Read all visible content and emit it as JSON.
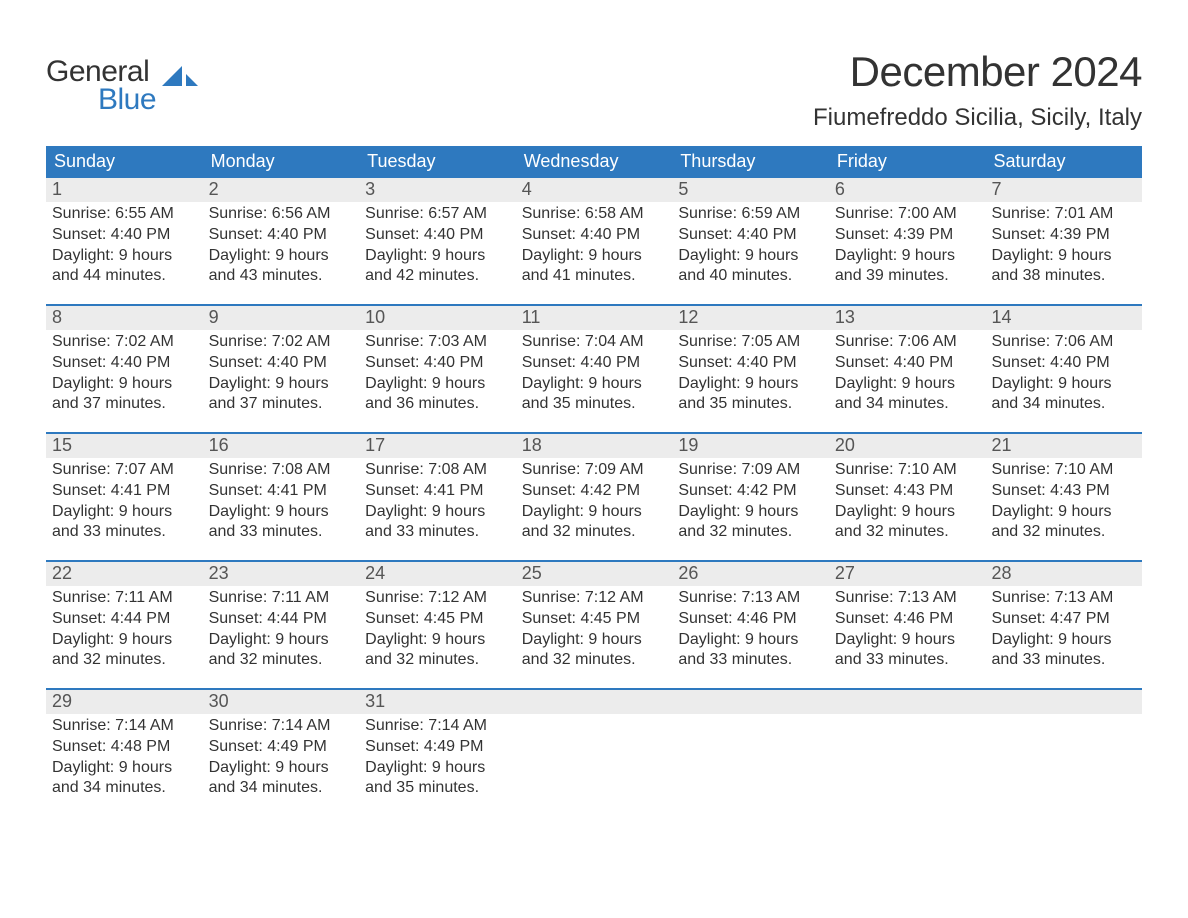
{
  "logo": {
    "word1": "General",
    "word2": "Blue",
    "word2_color": "#2e79bf",
    "icon_color": "#2e79bf"
  },
  "title": "December 2024",
  "subtitle": "Fiumefreddo Sicilia, Sicily, Italy",
  "colors": {
    "header_bg": "#2e79bf",
    "header_text": "#ffffff",
    "daynum_bg": "#ececec",
    "week_border": "#2e79bf",
    "body_text": "#333333",
    "page_bg": "#ffffff"
  },
  "typography": {
    "title_fontsize": 42,
    "subtitle_fontsize": 24,
    "weekday_fontsize": 18,
    "daynum_fontsize": 18,
    "content_fontsize": 16,
    "logo_fontsize": 30
  },
  "weekdays": [
    "Sunday",
    "Monday",
    "Tuesday",
    "Wednesday",
    "Thursday",
    "Friday",
    "Saturday"
  ],
  "weeks": [
    {
      "days": [
        {
          "num": "1",
          "sunrise": "Sunrise: 6:55 AM",
          "sunset": "Sunset: 4:40 PM",
          "daylight": "Daylight: 9 hours and 44 minutes."
        },
        {
          "num": "2",
          "sunrise": "Sunrise: 6:56 AM",
          "sunset": "Sunset: 4:40 PM",
          "daylight": "Daylight: 9 hours and 43 minutes."
        },
        {
          "num": "3",
          "sunrise": "Sunrise: 6:57 AM",
          "sunset": "Sunset: 4:40 PM",
          "daylight": "Daylight: 9 hours and 42 minutes."
        },
        {
          "num": "4",
          "sunrise": "Sunrise: 6:58 AM",
          "sunset": "Sunset: 4:40 PM",
          "daylight": "Daylight: 9 hours and 41 minutes."
        },
        {
          "num": "5",
          "sunrise": "Sunrise: 6:59 AM",
          "sunset": "Sunset: 4:40 PM",
          "daylight": "Daylight: 9 hours and 40 minutes."
        },
        {
          "num": "6",
          "sunrise": "Sunrise: 7:00 AM",
          "sunset": "Sunset: 4:39 PM",
          "daylight": "Daylight: 9 hours and 39 minutes."
        },
        {
          "num": "7",
          "sunrise": "Sunrise: 7:01 AM",
          "sunset": "Sunset: 4:39 PM",
          "daylight": "Daylight: 9 hours and 38 minutes."
        }
      ]
    },
    {
      "days": [
        {
          "num": "8",
          "sunrise": "Sunrise: 7:02 AM",
          "sunset": "Sunset: 4:40 PM",
          "daylight": "Daylight: 9 hours and 37 minutes."
        },
        {
          "num": "9",
          "sunrise": "Sunrise: 7:02 AM",
          "sunset": "Sunset: 4:40 PM",
          "daylight": "Daylight: 9 hours and 37 minutes."
        },
        {
          "num": "10",
          "sunrise": "Sunrise: 7:03 AM",
          "sunset": "Sunset: 4:40 PM",
          "daylight": "Daylight: 9 hours and 36 minutes."
        },
        {
          "num": "11",
          "sunrise": "Sunrise: 7:04 AM",
          "sunset": "Sunset: 4:40 PM",
          "daylight": "Daylight: 9 hours and 35 minutes."
        },
        {
          "num": "12",
          "sunrise": "Sunrise: 7:05 AM",
          "sunset": "Sunset: 4:40 PM",
          "daylight": "Daylight: 9 hours and 35 minutes."
        },
        {
          "num": "13",
          "sunrise": "Sunrise: 7:06 AM",
          "sunset": "Sunset: 4:40 PM",
          "daylight": "Daylight: 9 hours and 34 minutes."
        },
        {
          "num": "14",
          "sunrise": "Sunrise: 7:06 AM",
          "sunset": "Sunset: 4:40 PM",
          "daylight": "Daylight: 9 hours and 34 minutes."
        }
      ]
    },
    {
      "days": [
        {
          "num": "15",
          "sunrise": "Sunrise: 7:07 AM",
          "sunset": "Sunset: 4:41 PM",
          "daylight": "Daylight: 9 hours and 33 minutes."
        },
        {
          "num": "16",
          "sunrise": "Sunrise: 7:08 AM",
          "sunset": "Sunset: 4:41 PM",
          "daylight": "Daylight: 9 hours and 33 minutes."
        },
        {
          "num": "17",
          "sunrise": "Sunrise: 7:08 AM",
          "sunset": "Sunset: 4:41 PM",
          "daylight": "Daylight: 9 hours and 33 minutes."
        },
        {
          "num": "18",
          "sunrise": "Sunrise: 7:09 AM",
          "sunset": "Sunset: 4:42 PM",
          "daylight": "Daylight: 9 hours and 32 minutes."
        },
        {
          "num": "19",
          "sunrise": "Sunrise: 7:09 AM",
          "sunset": "Sunset: 4:42 PM",
          "daylight": "Daylight: 9 hours and 32 minutes."
        },
        {
          "num": "20",
          "sunrise": "Sunrise: 7:10 AM",
          "sunset": "Sunset: 4:43 PM",
          "daylight": "Daylight: 9 hours and 32 minutes."
        },
        {
          "num": "21",
          "sunrise": "Sunrise: 7:10 AM",
          "sunset": "Sunset: 4:43 PM",
          "daylight": "Daylight: 9 hours and 32 minutes."
        }
      ]
    },
    {
      "days": [
        {
          "num": "22",
          "sunrise": "Sunrise: 7:11 AM",
          "sunset": "Sunset: 4:44 PM",
          "daylight": "Daylight: 9 hours and 32 minutes."
        },
        {
          "num": "23",
          "sunrise": "Sunrise: 7:11 AM",
          "sunset": "Sunset: 4:44 PM",
          "daylight": "Daylight: 9 hours and 32 minutes."
        },
        {
          "num": "24",
          "sunrise": "Sunrise: 7:12 AM",
          "sunset": "Sunset: 4:45 PM",
          "daylight": "Daylight: 9 hours and 32 minutes."
        },
        {
          "num": "25",
          "sunrise": "Sunrise: 7:12 AM",
          "sunset": "Sunset: 4:45 PM",
          "daylight": "Daylight: 9 hours and 32 minutes."
        },
        {
          "num": "26",
          "sunrise": "Sunrise: 7:13 AM",
          "sunset": "Sunset: 4:46 PM",
          "daylight": "Daylight: 9 hours and 33 minutes."
        },
        {
          "num": "27",
          "sunrise": "Sunrise: 7:13 AM",
          "sunset": "Sunset: 4:46 PM",
          "daylight": "Daylight: 9 hours and 33 minutes."
        },
        {
          "num": "28",
          "sunrise": "Sunrise: 7:13 AM",
          "sunset": "Sunset: 4:47 PM",
          "daylight": "Daylight: 9 hours and 33 minutes."
        }
      ]
    },
    {
      "days": [
        {
          "num": "29",
          "sunrise": "Sunrise: 7:14 AM",
          "sunset": "Sunset: 4:48 PM",
          "daylight": "Daylight: 9 hours and 34 minutes."
        },
        {
          "num": "30",
          "sunrise": "Sunrise: 7:14 AM",
          "sunset": "Sunset: 4:49 PM",
          "daylight": "Daylight: 9 hours and 34 minutes."
        },
        {
          "num": "31",
          "sunrise": "Sunrise: 7:14 AM",
          "sunset": "Sunset: 4:49 PM",
          "daylight": "Daylight: 9 hours and 35 minutes."
        },
        {
          "num": "",
          "sunrise": "",
          "sunset": "",
          "daylight": ""
        },
        {
          "num": "",
          "sunrise": "",
          "sunset": "",
          "daylight": ""
        },
        {
          "num": "",
          "sunrise": "",
          "sunset": "",
          "daylight": ""
        },
        {
          "num": "",
          "sunrise": "",
          "sunset": "",
          "daylight": ""
        }
      ]
    }
  ]
}
